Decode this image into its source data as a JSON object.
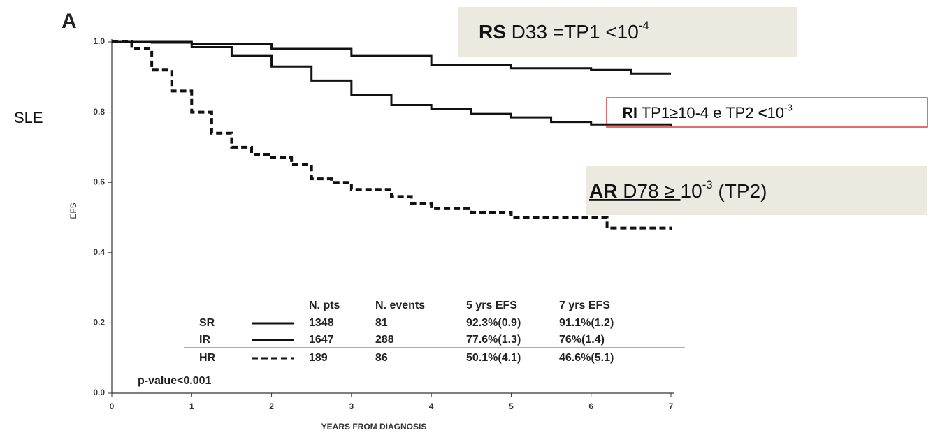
{
  "chart_data": {
    "type": "line",
    "panel_label": "A",
    "side_label": "SLE",
    "ylabel": "EFS",
    "xlabel": "YEARS FROM DIAGNOSIS",
    "xlim": [
      0,
      7
    ],
    "ylim": [
      0,
      1
    ],
    "xticks": [
      0,
      1,
      2,
      3,
      4,
      5,
      6,
      7
    ],
    "yticks": [
      {
        "value": 0,
        "label": "0.0"
      },
      0.2,
      0.4,
      0.6,
      0.8,
      {
        "value": 1,
        "label": "1.0"
      }
    ],
    "step": true,
    "series": [
      {
        "name": "SR",
        "color": "#111111",
        "dash": "solid",
        "x": [
          0,
          1,
          2,
          3,
          4,
          5,
          6,
          6.5,
          7
        ],
        "values": [
          1,
          0.995,
          0.98,
          0.96,
          0.935,
          0.925,
          0.92,
          0.91,
          0.91
        ]
      },
      {
        "name": "IR",
        "color": "#111111",
        "dash": "solid",
        "x": [
          0,
          0.5,
          1,
          1.5,
          2,
          2.5,
          3,
          3.5,
          4,
          4.5,
          5,
          5.5,
          6,
          7
        ],
        "values": [
          1,
          0.998,
          0.985,
          0.96,
          0.93,
          0.89,
          0.85,
          0.82,
          0.81,
          0.795,
          0.785,
          0.772,
          0.765,
          0.76
        ]
      },
      {
        "name": "HR",
        "color": "#111111",
        "dash": "dashed",
        "x": [
          0,
          0.25,
          0.5,
          0.75,
          1,
          1.25,
          1.5,
          1.75,
          2,
          2.25,
          2.5,
          2.75,
          3,
          3.5,
          3.75,
          4,
          4.5,
          5,
          6.2,
          7
        ],
        "values": [
          1,
          0.98,
          0.92,
          0.86,
          0.8,
          0.74,
          0.7,
          0.68,
          0.67,
          0.65,
          0.61,
          0.6,
          0.58,
          0.56,
          0.54,
          0.525,
          0.515,
          0.5,
          0.47,
          0.465
        ]
      }
    ],
    "table": {
      "columns": [
        "N. pts",
        "N. events",
        "5 yrs EFS",
        "7 yrs EFS"
      ],
      "rows": [
        [
          "1348",
          "81",
          "92.3%(0.9)",
          "91.1%(1.2)"
        ],
        [
          "1647",
          "288",
          "77.6%(1.3)",
          "76%(1.4)"
        ],
        [
          "189",
          "86",
          "50.1%(4.1)",
          "46.6%(5.1)"
        ]
      ]
    },
    "p_value": "p-value<0.001",
    "annotations": [
      {
        "segments": [
          {
            "text": "RS",
            "style": "bold"
          },
          {
            "text": " D33 =TP1 <10",
            "style": "normal"
          },
          {
            "text": "-4",
            "style": "sup"
          }
        ]
      },
      {
        "segments": [
          {
            "text": "RI",
            "style": "bold"
          },
          {
            "text": " TP1≥10-4 e TP2 ",
            "style": "normal"
          },
          {
            "text": "<",
            "style": "bold"
          },
          {
            "text": "10",
            "style": "normal"
          },
          {
            "text": "-3",
            "style": "sup"
          }
        ]
      },
      {
        "segments": [
          {
            "text": "AR",
            "style": "bold-underline"
          },
          {
            "text": " D78 ≥ ",
            "style": "underline"
          },
          {
            "text": "10",
            "style": "normal"
          },
          {
            "text": "-3",
            "style": "sup"
          },
          {
            "text": " (TP2)",
            "style": "normal"
          }
        ]
      }
    ]
  }
}
